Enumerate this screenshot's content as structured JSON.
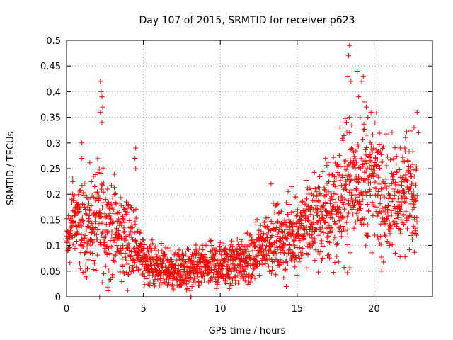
{
  "chart_data": {
    "type": "scatter",
    "title": "Day 107 of 2015, SRMTID for receiver p623",
    "xlabel": "GPS time / hours",
    "ylabel": "SRMTID / TECUs",
    "xlim": [
      0,
      23.8
    ],
    "ylim": [
      0,
      0.5
    ],
    "xticks": [
      0,
      5,
      10,
      15,
      20
    ],
    "xtick_labels": [
      "0",
      "5",
      "10",
      "15",
      "20"
    ],
    "yticks": [
      0,
      0.05,
      0.1,
      0.15,
      0.2,
      0.25,
      0.3,
      0.35,
      0.4,
      0.45,
      0.5
    ],
    "ytick_labels": [
      "0",
      "0.05",
      "0.1",
      "0.15",
      "0.2",
      "0.25",
      "0.3",
      "0.35",
      "0.4",
      "0.45",
      "0.5"
    ],
    "grid": true,
    "marker": "+",
    "color": "#ff0000",
    "trend": [
      [
        0.0,
        0.1
      ],
      [
        0.5,
        0.16
      ],
      [
        1.0,
        0.13
      ],
      [
        1.5,
        0.14
      ],
      [
        2.0,
        0.15
      ],
      [
        2.5,
        0.14
      ],
      [
        3.0,
        0.13
      ],
      [
        3.5,
        0.12
      ],
      [
        4.0,
        0.11
      ],
      [
        4.5,
        0.1
      ],
      [
        5.0,
        0.07
      ],
      [
        6.0,
        0.06
      ],
      [
        7.0,
        0.05
      ],
      [
        8.0,
        0.05
      ],
      [
        9.0,
        0.06
      ],
      [
        10.0,
        0.06
      ],
      [
        11.0,
        0.07
      ],
      [
        12.0,
        0.07
      ],
      [
        13.0,
        0.11
      ],
      [
        14.0,
        0.11
      ],
      [
        15.0,
        0.13
      ],
      [
        16.0,
        0.15
      ],
      [
        17.0,
        0.16
      ],
      [
        18.0,
        0.2
      ],
      [
        19.0,
        0.23
      ],
      [
        20.0,
        0.22
      ],
      [
        21.0,
        0.18
      ],
      [
        22.0,
        0.2
      ],
      [
        22.8,
        0.22
      ]
    ],
    "spread": [
      [
        0.0,
        0.03
      ],
      [
        2.0,
        0.05
      ],
      [
        4.0,
        0.04
      ],
      [
        5.0,
        0.02
      ],
      [
        8.0,
        0.02
      ],
      [
        12.0,
        0.025
      ],
      [
        15.0,
        0.035
      ],
      [
        18.0,
        0.06
      ],
      [
        20.0,
        0.06
      ],
      [
        22.8,
        0.05
      ]
    ],
    "n_points": 2200,
    "highlights": [
      [
        2.2,
        0.42
      ],
      [
        2.25,
        0.4
      ],
      [
        2.3,
        0.39
      ],
      [
        2.35,
        0.37
      ],
      [
        2.2,
        0.36
      ],
      [
        2.3,
        0.34
      ],
      [
        2.15,
        0.0
      ],
      [
        4.5,
        0.29
      ],
      [
        4.5,
        0.25
      ],
      [
        4.45,
        0.27
      ],
      [
        1.0,
        0.3
      ],
      [
        1.0,
        0.27
      ],
      [
        0.4,
        0.23
      ],
      [
        0.4,
        0.2
      ],
      [
        8.05,
        0.0
      ],
      [
        8.1,
        0.0
      ],
      [
        18.4,
        0.49
      ],
      [
        18.35,
        0.47
      ],
      [
        18.3,
        0.43
      ],
      [
        18.5,
        0.42
      ],
      [
        18.9,
        0.44
      ],
      [
        19.3,
        0.43
      ],
      [
        19.2,
        0.42
      ],
      [
        19.4,
        0.38
      ],
      [
        19.5,
        0.37
      ],
      [
        19.0,
        0.39
      ],
      [
        19.8,
        0.36
      ],
      [
        19.6,
        0.35
      ],
      [
        18.4,
        0.35
      ],
      [
        14.3,
        0.02
      ],
      [
        13.3,
        0.22
      ],
      [
        20.5,
        0.05
      ],
      [
        21.0,
        0.1
      ],
      [
        22.6,
        0.33
      ],
      [
        22.8,
        0.36
      ],
      [
        22.9,
        0.32
      ],
      [
        21.7,
        0.29
      ],
      [
        22.0,
        0.29
      ]
    ]
  }
}
